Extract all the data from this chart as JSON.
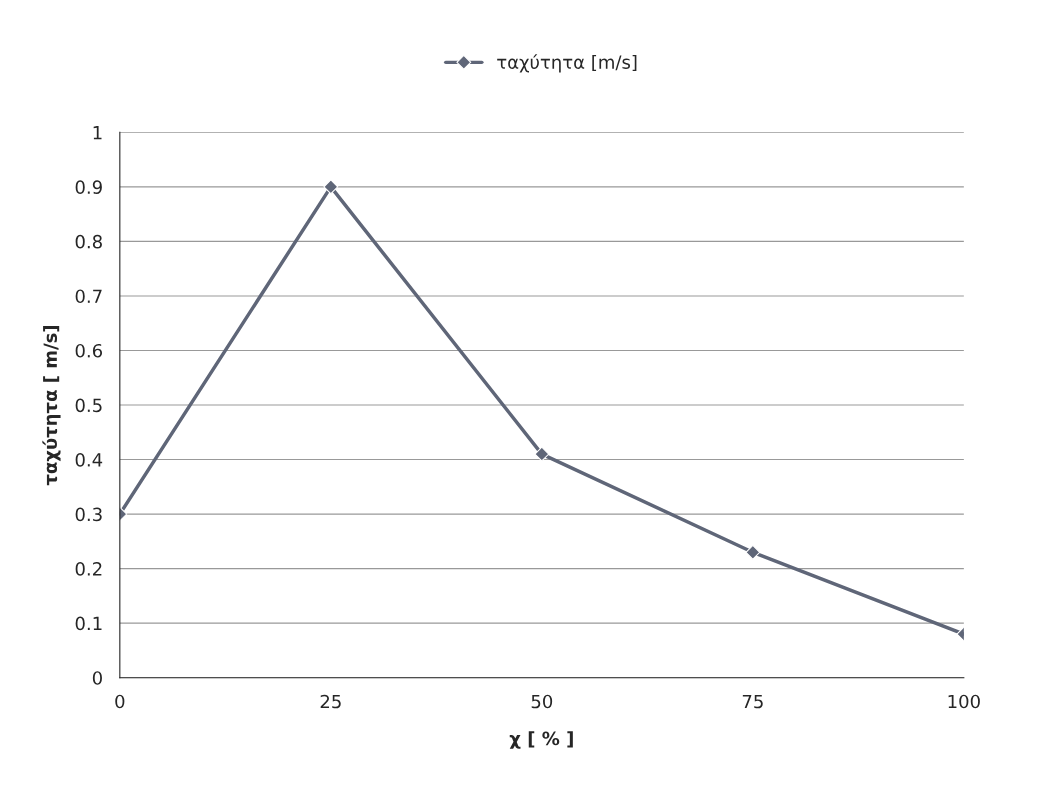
{
  "chart_data": {
    "type": "line",
    "xlabel": "χ [ % ]",
    "ylabel": "ταχύτητα [ m/s]",
    "x": [
      0,
      25,
      50,
      75,
      100
    ],
    "series": [
      {
        "name": "ταχύτητα [m/s]",
        "color": "#5f6678",
        "values": [
          0.3,
          0.9,
          0.41,
          0.23,
          0.08
        ]
      }
    ],
    "xlim": [
      0,
      100
    ],
    "xticks": [
      0,
      25,
      50,
      75,
      100
    ],
    "ylim": [
      0,
      1
    ],
    "yticks": [
      0,
      0.1,
      0.2,
      0.3,
      0.4,
      0.5,
      0.6,
      0.7,
      0.8,
      0.9,
      1
    ],
    "grid": "y",
    "legend": "top",
    "marker": "diamond",
    "line_style": "solid"
  }
}
